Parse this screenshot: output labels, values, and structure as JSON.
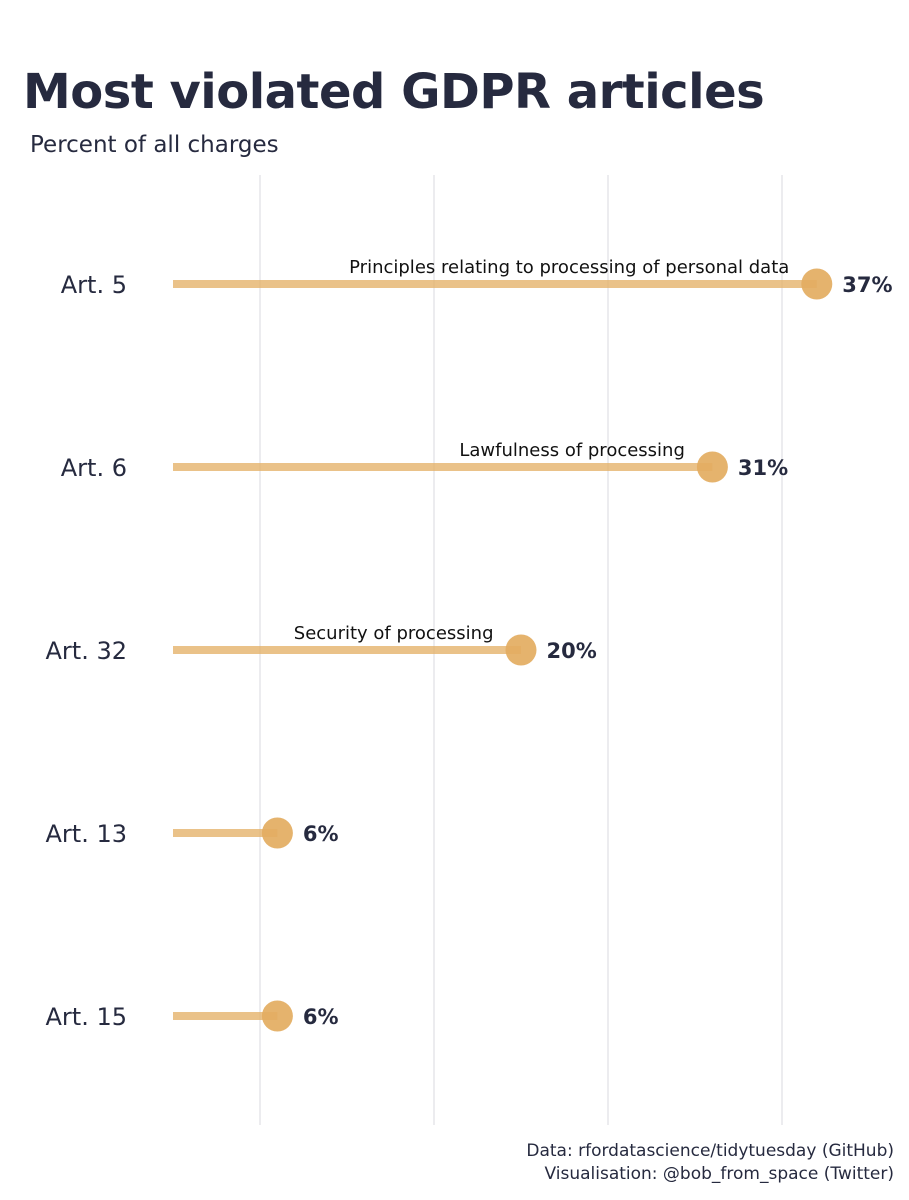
{
  "chart_data": {
    "type": "lollipop",
    "title": "Most violated GDPR articles",
    "subtitle": "Percent of all charges",
    "categories": [
      "Art. 5",
      "Art. 6",
      "Art. 32",
      "Art. 13",
      "Art. 15"
    ],
    "values": [
      37,
      31,
      20,
      6,
      6
    ],
    "value_labels": [
      "37%",
      "31%",
      "20%",
      "6%",
      "6%"
    ],
    "annotations": [
      "Principles relating to processing of personal data",
      "Lawfulness of processing",
      "Security of processing",
      "",
      ""
    ],
    "xlim": [
      0,
      40
    ],
    "grid": true,
    "colors": {
      "lollipop": "#e3ad61",
      "grid": "#e0e0e4",
      "text": "#262a3f"
    }
  },
  "caption": {
    "line1": "Data: rfordatascience/tidytuesday (GitHub)",
    "line2": "Visualisation: @bob_from_space (Twitter)"
  }
}
